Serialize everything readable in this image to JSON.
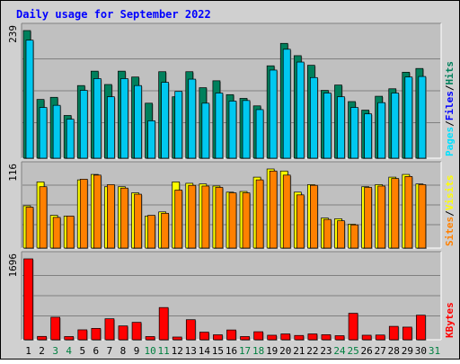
{
  "chart_data": {
    "type": "bar",
    "title": "Daily usage for September 2022",
    "x": {
      "days": [
        1,
        2,
        3,
        4,
        5,
        6,
        7,
        8,
        9,
        10,
        11,
        12,
        13,
        14,
        15,
        16,
        17,
        18,
        19,
        20,
        21,
        22,
        23,
        24,
        25,
        26,
        27,
        28,
        29,
        30,
        31
      ],
      "weekend_days": [
        3,
        4,
        10,
        11,
        17,
        18,
        24,
        25,
        31
      ]
    },
    "colors": {
      "hits": "#00805c",
      "files": "#00c8f0",
      "pages": "#00e0ff",
      "visits": "#ffff00",
      "sites": "#ff8000",
      "kbytes": "#ff0000",
      "title": "#0000ff",
      "weekday_label": "#000000",
      "weekend_label": "#008040",
      "plot_bg": "#c0c0c0",
      "frame_bg": "#d0d0d0"
    },
    "panels": [
      {
        "name": "hits-files-pages",
        "max_label": "239",
        "ylim": [
          0,
          239
        ],
        "legend": [
          {
            "label": "Pages",
            "color": "#00e0ff"
          },
          {
            "label": "/",
            "color": "#000000"
          },
          {
            "label": "Files",
            "color": "#0000ff"
          },
          {
            "label": "/",
            "color": "#000000"
          },
          {
            "label": "Hits",
            "color": "#00805c"
          }
        ],
        "series": [
          {
            "name": "Hits",
            "values": [
              239,
              110,
              114,
              80,
              136,
              163,
              138,
              163,
              152,
              103,
              162,
              115,
              162,
              132,
              145,
              119,
              112,
              98,
              173,
              215,
              192,
              174,
              127,
              137,
              106,
              90,
              116,
              130,
              161,
              168,
              0
            ]
          },
          {
            "name": "Files",
            "values": [
              221,
              95,
              99,
              73,
              127,
              149,
              115,
              149,
              136,
              70,
              142,
              125,
              148,
              103,
              122,
              107,
              108,
              91,
              165,
              204,
              180,
              151,
              122,
              115,
              95,
              83,
              104,
              122,
              152,
              153,
              0
            ]
          }
        ]
      },
      {
        "name": "visits-sites",
        "max_label": "116",
        "ylim": [
          0,
          116
        ],
        "legend": [
          {
            "label": "Sites",
            "color": "#ff8000"
          },
          {
            "label": "/",
            "color": "#000000"
          },
          {
            "label": "Visits",
            "color": "#ffff00"
          }
        ],
        "series": [
          {
            "name": "Visits",
            "values": [
              62,
              97,
              48,
              47,
              100,
              108,
              90,
              90,
              81,
              47,
              53,
              97,
              95,
              94,
              91,
              82,
              83,
              104,
              116,
              113,
              82,
              93,
              44,
              43,
              35,
              90,
              93,
              104,
              108,
              94,
              0
            ]
          },
          {
            "name": "Sites",
            "values": [
              60,
              90,
              45,
              47,
              101,
              107,
              93,
              88,
              79,
              48,
              51,
              85,
              92,
              91,
              89,
              81,
              81,
              100,
              113,
              107,
              78,
              92,
              42,
              40,
              34,
              89,
              91,
              102,
              105,
              93,
              0
            ]
          }
        ]
      },
      {
        "name": "kbytes",
        "max_label": "1696",
        "ylim": [
          0,
          1696
        ],
        "legend": [
          {
            "label": "KBytes",
            "color": "#ff0000"
          }
        ],
        "series": [
          {
            "name": "KBytes",
            "values": [
              1696,
              70,
              472,
              67,
              208,
              238,
              440,
              290,
              365,
              67,
              675,
              57,
              420,
              159,
              104,
              205,
              67,
              168,
              95,
              122,
              90,
              122,
              106,
              85,
              555,
              95,
              99,
              281,
              265,
              515,
              0
            ]
          }
        ]
      }
    ]
  }
}
